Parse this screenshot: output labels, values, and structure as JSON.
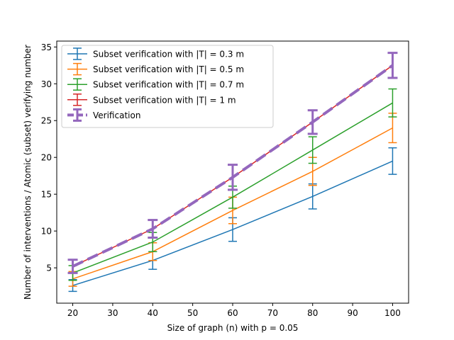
{
  "chart_data": {
    "type": "line",
    "title": "",
    "xlabel": "Size of graph (n) with p = 0.05",
    "ylabel": "Number of interventions / Atomic (subset) verifying number",
    "x": [
      20,
      40,
      60,
      80,
      100
    ],
    "xlim": [
      16,
      104
    ],
    "ylim": [
      0.2,
      35.8
    ],
    "xticks": [
      20,
      30,
      40,
      50,
      60,
      70,
      80,
      90,
      100
    ],
    "yticks": [
      5,
      10,
      15,
      20,
      25,
      30,
      35
    ],
    "legend_position": "upper-left",
    "grid": false,
    "series": [
      {
        "name": "Subset verification with |T| = 0.3 m",
        "color": "#1f77b4",
        "style": "solid",
        "values": [
          2.6,
          6.0,
          10.2,
          14.7,
          19.5
        ],
        "errors": [
          0.8,
          1.2,
          1.6,
          1.7,
          1.8
        ]
      },
      {
        "name": "Subset verification with |T| = 0.5 m",
        "color": "#ff7f0e",
        "style": "solid",
        "values": [
          3.5,
          7.2,
          12.8,
          18.1,
          24.0
        ],
        "errors": [
          1.0,
          1.2,
          1.8,
          1.9,
          2.0
        ]
      },
      {
        "name": "Subset verification with |T| = 0.7 m",
        "color": "#2ca02c",
        "style": "solid",
        "values": [
          4.3,
          8.5,
          14.6,
          21.0,
          27.4
        ],
        "errors": [
          1.0,
          1.3,
          1.5,
          1.8,
          1.9
        ]
      },
      {
        "name": "Subset verification with |T| = 1 m",
        "color": "#d62728",
        "style": "solid",
        "values": [
          5.2,
          10.3,
          17.3,
          24.8,
          32.5
        ],
        "errors": [
          0.9,
          1.2,
          1.7,
          1.6,
          1.7
        ]
      },
      {
        "name": "Verification",
        "color": "#9467bd",
        "style": "dashed",
        "values": [
          5.2,
          10.3,
          17.3,
          24.8,
          32.5
        ],
        "errors": [
          0.9,
          1.2,
          1.7,
          1.6,
          1.7
        ]
      }
    ]
  }
}
